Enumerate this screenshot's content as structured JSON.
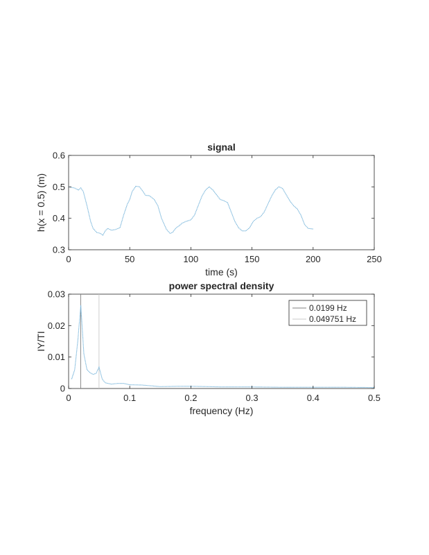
{
  "chart_data": [
    {
      "type": "line",
      "title": "signal",
      "xlabel": "time (s)",
      "ylabel": "h(x = 0.5) (m)",
      "xlim": [
        0,
        250
      ],
      "ylim": [
        0.3,
        0.6
      ],
      "xticks": [
        "0",
        "50",
        "100",
        "150",
        "200",
        "250"
      ],
      "yticks": [
        "0.3",
        "0.4",
        "0.5",
        "0.6"
      ],
      "grid": false,
      "color": "#7db8dc",
      "series": [
        {
          "x": [
            0,
            5,
            8,
            10,
            12,
            15,
            18,
            20,
            23,
            26,
            28,
            30,
            32,
            35,
            38,
            42,
            45,
            48,
            50,
            52,
            55,
            58,
            60,
            63,
            66,
            70,
            73,
            76,
            80,
            83,
            85,
            88,
            90,
            93,
            96,
            100,
            103,
            106,
            109,
            112,
            115,
            118,
            121,
            124,
            127,
            130,
            133,
            136,
            139,
            142,
            145,
            148,
            151,
            154,
            157,
            160,
            163,
            166,
            169,
            172,
            175,
            178,
            181,
            184,
            187,
            190,
            193,
            196,
            200
          ],
          "y": [
            0.5,
            0.496,
            0.49,
            0.497,
            0.485,
            0.44,
            0.39,
            0.368,
            0.355,
            0.352,
            0.346,
            0.36,
            0.368,
            0.362,
            0.364,
            0.37,
            0.41,
            0.445,
            0.46,
            0.485,
            0.502,
            0.5,
            0.49,
            0.473,
            0.472,
            0.46,
            0.44,
            0.4,
            0.365,
            0.352,
            0.355,
            0.37,
            0.375,
            0.385,
            0.39,
            0.395,
            0.41,
            0.44,
            0.47,
            0.49,
            0.5,
            0.49,
            0.475,
            0.46,
            0.456,
            0.45,
            0.42,
            0.39,
            0.37,
            0.36,
            0.36,
            0.37,
            0.39,
            0.4,
            0.405,
            0.42,
            0.445,
            0.47,
            0.49,
            0.5,
            0.495,
            0.475,
            0.455,
            0.44,
            0.43,
            0.41,
            0.38,
            0.368,
            0.366
          ]
        }
      ]
    },
    {
      "type": "line",
      "title": "power spectral density",
      "xlabel": "frequency (Hz)",
      "ylabel": "IY/TI",
      "xlim": [
        0,
        0.5
      ],
      "ylim": [
        0,
        0.03
      ],
      "xticks": [
        "0",
        "0.1",
        "0.2",
        "0.3",
        "0.4",
        "0.5"
      ],
      "yticks": [
        "0",
        "0.01",
        "0.02",
        "0.03"
      ],
      "grid": false,
      "color": "#7db8dc",
      "legend_position": "top-right",
      "series": [
        {
          "x": [
            0.005,
            0.01,
            0.015,
            0.0199,
            0.025,
            0.03,
            0.035,
            0.04,
            0.045,
            0.0498,
            0.055,
            0.06,
            0.07,
            0.08,
            0.09,
            0.1,
            0.12,
            0.15,
            0.18,
            0.2,
            0.25,
            0.3,
            0.35,
            0.4,
            0.45,
            0.5
          ],
          "y": [
            0.003,
            0.006,
            0.015,
            0.0265,
            0.011,
            0.006,
            0.005,
            0.0045,
            0.0048,
            0.0068,
            0.003,
            0.0018,
            0.0014,
            0.0016,
            0.0016,
            0.0012,
            0.0011,
            0.0006,
            0.0007,
            0.0007,
            0.0005,
            0.0005,
            0.0004,
            0.0004,
            0.0004,
            0.0003
          ]
        }
      ],
      "vlines": [
        {
          "name": "0.0199 Hz",
          "x": 0.0199,
          "color": "#7f7f7f"
        },
        {
          "name": "0.049751 Hz",
          "x": 0.049751,
          "color": "#c8c8c8"
        }
      ]
    }
  ]
}
